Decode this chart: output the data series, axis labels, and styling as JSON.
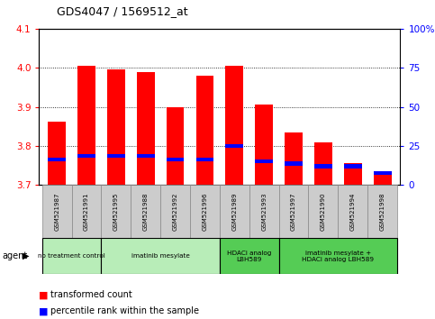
{
  "title": "GDS4047 / 1569512_at",
  "samples": [
    "GSM521987",
    "GSM521991",
    "GSM521995",
    "GSM521988",
    "GSM521992",
    "GSM521996",
    "GSM521989",
    "GSM521993",
    "GSM521997",
    "GSM521990",
    "GSM521994",
    "GSM521998"
  ],
  "red_values": [
    3.862,
    4.005,
    3.997,
    3.99,
    3.9,
    3.98,
    4.005,
    3.907,
    3.835,
    3.81,
    3.757,
    3.732
  ],
  "blue_values": [
    3.765,
    3.775,
    3.775,
    3.775,
    3.765,
    3.765,
    3.8,
    3.76,
    3.755,
    3.748,
    3.748,
    3.73
  ],
  "ylim_left": [
    3.7,
    4.1
  ],
  "yticks_left": [
    3.7,
    3.8,
    3.9,
    4.0,
    4.1
  ],
  "yticks_right": [
    0,
    25,
    50,
    75,
    100
  ],
  "ylim_right": [
    0,
    100
  ],
  "group_configs": [
    {
      "start": 0,
      "end": 1,
      "label": "no treatment control",
      "color": "#b8edb8"
    },
    {
      "start": 2,
      "end": 5,
      "label": "imatinib mesylate",
      "color": "#b8edb8"
    },
    {
      "start": 6,
      "end": 7,
      "label": "HDACi analog\nLBH589",
      "color": "#55cc55"
    },
    {
      "start": 8,
      "end": 11,
      "label": "imatinib mesylate +\nHDACi analog LBH589",
      "color": "#55cc55"
    }
  ],
  "bar_width": 0.6,
  "bar_bottom": 3.7,
  "background_color": "#ffffff",
  "sample_box_color": "#cccccc",
  "grid_color": "#000000",
  "left_tick_color": "#ff0000",
  "right_tick_color": "#0000ff"
}
